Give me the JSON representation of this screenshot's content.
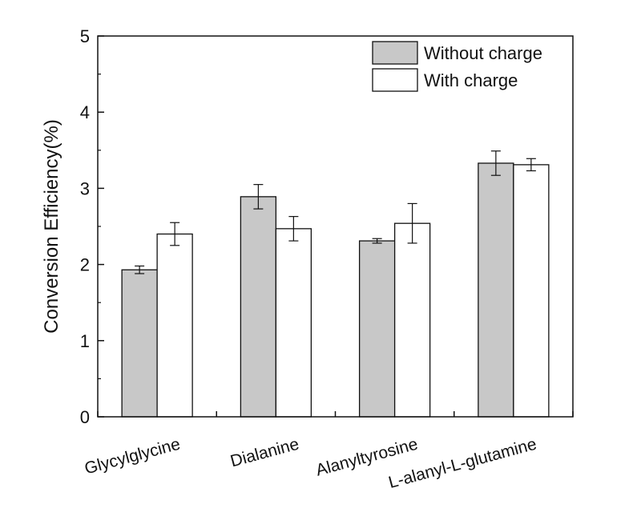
{
  "chart_data": {
    "type": "bar",
    "categories": [
      "Glycylglycine",
      "Dialanine",
      "Alanyltyrosine",
      "L-alanyl-L-glutamine"
    ],
    "series": [
      {
        "name": "Without charge",
        "color": "#c8c8c8",
        "values": [
          1.93,
          2.89,
          2.31,
          3.33
        ],
        "errors": [
          0.05,
          0.16,
          0.03,
          0.16
        ]
      },
      {
        "name": "With charge",
        "color": "#ffffff",
        "values": [
          2.4,
          2.47,
          2.54,
          3.31
        ],
        "errors": [
          0.15,
          0.16,
          0.26,
          0.08
        ]
      }
    ],
    "ylabel": "Conversion Efficiency(%)",
    "ylim": [
      0,
      5
    ],
    "yticks": [
      0,
      1,
      2,
      3,
      4,
      5
    ],
    "xlabel_rotation_deg": -15,
    "legend_position": "top-right",
    "grid": false,
    "error_bars": true
  }
}
